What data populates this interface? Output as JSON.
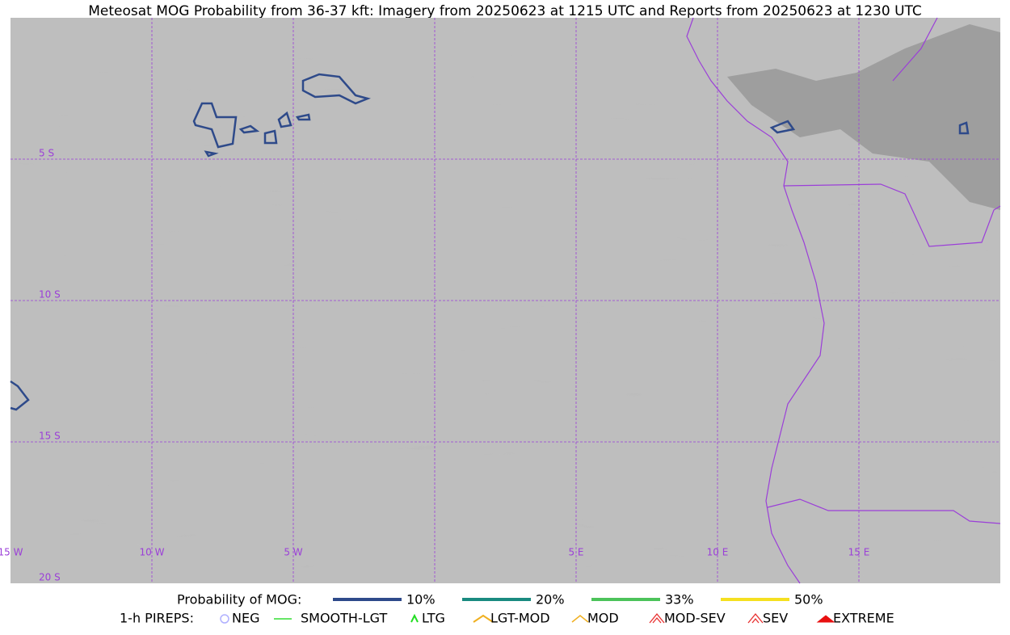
{
  "header": {
    "title": "Meteosat MOG Probability from 36-37 kft: Imagery from 20250623 at 1215 UTC and Reports from 20250623 at 1230 UTC"
  },
  "map": {
    "lon_labels": [
      "15 W",
      "10 W",
      "5 W",
      "5 E",
      "10 E",
      "15 E"
    ],
    "lat_labels": [
      "5 S",
      "10 S",
      "15 S",
      "20 S"
    ]
  },
  "legend": {
    "title": "Probability of MOG:",
    "levels": [
      {
        "label": "10%",
        "color": "#2e4a8a"
      },
      {
        "label": "20%",
        "color": "#1a8a80"
      },
      {
        "label": "33%",
        "color": "#4cc35a"
      },
      {
        "label": "50%",
        "color": "#f5e020"
      }
    ]
  },
  "pireps": {
    "title": "1-h PIREPS:",
    "items": [
      "NEG",
      "SMOOTH-LGT",
      "LTG",
      "LGT-MOD",
      "MOD",
      "MOD-SEV",
      "SEV",
      "EXTREME"
    ]
  }
}
